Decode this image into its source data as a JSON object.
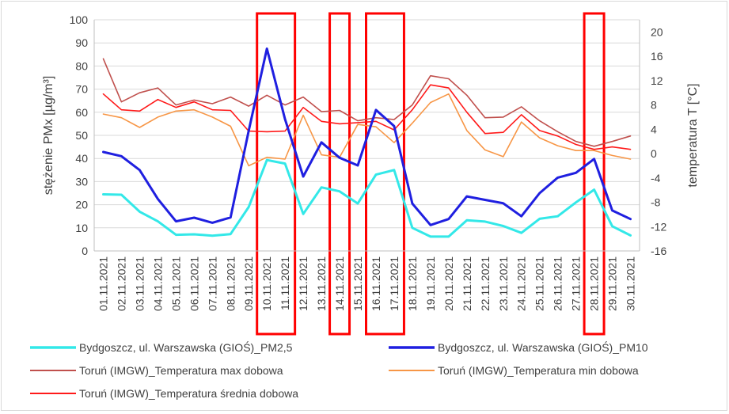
{
  "chart_data": {
    "type": "line",
    "categories": [
      "01.11.2021",
      "02.11.2021",
      "03.11.2021",
      "04.11.2021",
      "05.11.2021",
      "06.11.2021",
      "07.11.2021",
      "08.11.2021",
      "09.11.2021",
      "10.11.2021",
      "11.11.2021",
      "12.11.2021",
      "13.11.2021",
      "14.11.2021",
      "15.11.2021",
      "16.11.2021",
      "17.11.2021",
      "18.11.2021",
      "19.11.2021",
      "20.11.2021",
      "21.11.2021",
      "22.11.2021",
      "23.11.2021",
      "24.11.2021",
      "25.11.2021",
      "26.11.2021",
      "27.11.2021",
      "28.11.2021",
      "29.11.2021",
      "30.11.2021"
    ],
    "ylabel": "stężenie PMx [µg/m³]",
    "y2label": "temperatura T [°C]",
    "ylim": [
      0,
      100
    ],
    "y2lim": [
      -16,
      22
    ],
    "yticks": [
      "0",
      "10",
      "20",
      "30",
      "40",
      "50",
      "60",
      "70",
      "80",
      "90",
      "100"
    ],
    "y2ticks": [
      "-16",
      "-12",
      "-8",
      "-4",
      "0",
      "4",
      "8",
      "12",
      "16",
      "20"
    ],
    "grid": true,
    "legend_position": "bottom",
    "highlight_categories": [
      "10.11.2021",
      "11.11.2021",
      "14.11.2021",
      "16.11.2021",
      "17.11.2021",
      "28.11.2021"
    ],
    "highlight_color": "#ff0000",
    "series": [
      {
        "name": "Bydgoszcz, ul. Warszawska (GIOŚ)_PM2,5",
        "axis": "left",
        "color": "#33e8e8",
        "width": 3,
        "values": [
          24.5,
          24.3,
          17,
          12.8,
          7,
          7.2,
          6.6,
          7.3,
          19,
          39.3,
          37.8,
          16,
          27.5,
          25.8,
          20.5,
          33,
          35,
          10,
          6.2,
          6.2,
          13.3,
          12.7,
          10.8,
          7.8,
          13.9,
          15,
          21,
          26.5,
          10.7,
          6.7
        ]
      },
      {
        "name": "Bydgoszcz, ul. Warszawska (GIOŚ)_PM10",
        "axis": "left",
        "color": "#1f1fe0",
        "width": 3,
        "values": [
          42.8,
          41,
          35,
          22.5,
          12.8,
          14.4,
          12.2,
          14.5,
          52,
          87.5,
          57,
          32.2,
          47,
          40.3,
          37,
          61,
          54,
          20.5,
          11.2,
          13.8,
          23.6,
          22.1,
          20.6,
          15,
          25,
          31.7,
          33.8,
          39.8,
          17.5,
          13.8
        ]
      },
      {
        "name": "Toruń (IMGW)_Temperatura max dobowa",
        "axis": "right",
        "color": "#c0504d",
        "width": 1.6,
        "values": [
          15.6,
          8.5,
          10,
          10.8,
          8,
          8.8,
          8.2,
          9.3,
          7.8,
          9.6,
          8,
          9.3,
          6.9,
          7.1,
          5.4,
          5.9,
          5.6,
          8,
          12.8,
          12.3,
          9.6,
          5.9,
          6,
          7.7,
          5.4,
          3.6,
          2,
          1.2,
          2,
          2.9
        ]
      },
      {
        "name": "Toruń (IMGW)_Temperatura min dobowa",
        "axis": "right",
        "color": "#f79646",
        "width": 1.6,
        "values": [
          6.5,
          5.9,
          4.3,
          6,
          7,
          7.2,
          6,
          4.5,
          -2,
          -0.6,
          -0.9,
          6.3,
          -0.2,
          -0.6,
          4.8,
          4.4,
          1.8,
          5,
          8.4,
          9.8,
          3.8,
          0.6,
          -0.5,
          5.2,
          2.6,
          1.3,
          0.5,
          0.5,
          -0.3,
          -0.9
        ]
      },
      {
        "name": "Toruń (IMGW)_Temperatura średnia dobowa",
        "axis": "right",
        "color": "#ff1a1a",
        "width": 1.6,
        "values": [
          9.8,
          7.2,
          7,
          8.9,
          7.6,
          8.5,
          7.2,
          7.1,
          3.7,
          3.6,
          3.7,
          7.6,
          5.3,
          4.9,
          5.1,
          5.3,
          3.9,
          7.2,
          11.3,
          10.8,
          6.8,
          3.3,
          3.5,
          6.4,
          3.8,
          2.9,
          1.5,
          0.7,
          1.1,
          0.7
        ]
      }
    ]
  }
}
